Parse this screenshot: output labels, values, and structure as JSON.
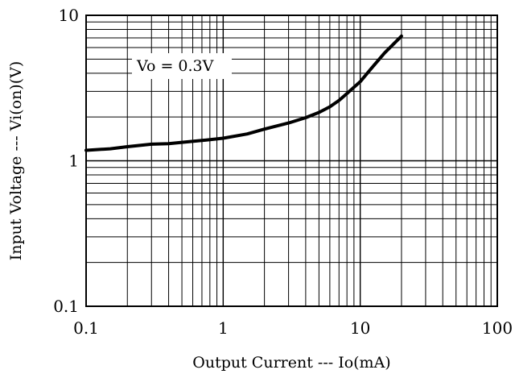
{
  "chart_data": {
    "type": "line",
    "xscale": "log",
    "yscale": "log",
    "xlim": [
      0.1,
      100
    ],
    "ylim": [
      0.1,
      10
    ],
    "xlabel": "Output Current --- Io(mA)",
    "ylabel": "Input Voltage --- Vi(on)(V)",
    "x_ticks": [
      0.1,
      1,
      10,
      100
    ],
    "x_tick_labels": [
      "0.1",
      "1",
      "10",
      "100"
    ],
    "y_ticks": [
      0.1,
      1,
      10
    ],
    "y_tick_labels": [
      "0.1",
      "1",
      "10"
    ],
    "grid": true,
    "annotation": "Vo = 0.3V",
    "series": [
      {
        "x": [
          0.1,
          0.15,
          0.2,
          0.3,
          0.4,
          0.5,
          0.7,
          1,
          1.5,
          2,
          3,
          4,
          5,
          6,
          7,
          8,
          10,
          12,
          15,
          20
        ],
        "y": [
          1.18,
          1.21,
          1.25,
          1.3,
          1.31,
          1.34,
          1.38,
          1.43,
          1.53,
          1.65,
          1.82,
          1.98,
          2.15,
          2.35,
          2.6,
          2.9,
          3.5,
          4.3,
          5.5,
          7.2
        ]
      }
    ]
  }
}
